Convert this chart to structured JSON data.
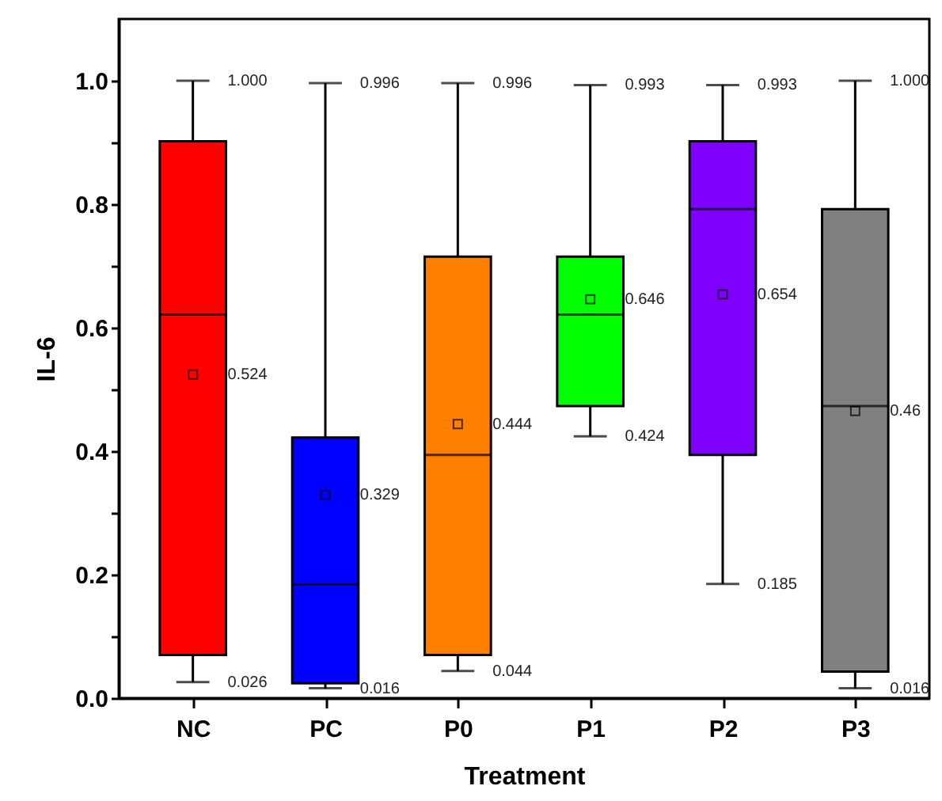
{
  "chart_data": {
    "type": "box",
    "xlabel": "Treatment",
    "ylabel": "IL-6",
    "categories": [
      "NC",
      "PC",
      "P0",
      "P1",
      "P2",
      "P3"
    ],
    "colors": [
      "#ff0000",
      "#0000ff",
      "#ff8000",
      "#00ff00",
      "#8000ff",
      "#808080"
    ],
    "boxes": [
      {
        "low": 0.026,
        "q1": 0.07,
        "median": 0.621,
        "q3": 0.902,
        "high": 1.0,
        "mean": 0.524
      },
      {
        "low": 0.016,
        "q1": 0.024,
        "median": 0.184,
        "q3": 0.422,
        "high": 0.996,
        "mean": 0.329
      },
      {
        "low": 0.044,
        "q1": 0.07,
        "median": 0.394,
        "q3": 0.715,
        "high": 0.996,
        "mean": 0.444
      },
      {
        "low": 0.424,
        "q1": 0.473,
        "median": 0.621,
        "q3": 0.715,
        "high": 0.993,
        "mean": 0.646
      },
      {
        "low": 0.185,
        "q1": 0.394,
        "median": 0.792,
        "q3": 0.902,
        "high": 0.993,
        "mean": 0.654
      },
      {
        "low": 0.016,
        "q1": 0.043,
        "median": 0.473,
        "q3": 0.792,
        "high": 1.0,
        "mean": 0.465
      }
    ],
    "ylim": [
      0,
      1.1
    ],
    "yticks": [
      {
        "value": 0,
        "label": "0.0"
      },
      {
        "value": 0.1,
        "label": null
      },
      0.2,
      {
        "value": 0.3,
        "label": null
      },
      0.4,
      {
        "value": 0.5,
        "label": null
      },
      0.6,
      {
        "value": 0.7,
        "label": null
      },
      0.8,
      {
        "value": 0.9,
        "label": null
      },
      {
        "value": 1,
        "label": "1.0"
      }
    ],
    "marker": "square",
    "grid": false,
    "annotations": [
      {
        "text": "1.000",
        "x": "NC",
        "y": 1.0
      },
      {
        "text": "0.026",
        "x": "NC",
        "y": 0.026
      },
      {
        "text": "0.996",
        "x": "PC",
        "y": 0.996
      },
      {
        "text": "0.016",
        "x": "PC",
        "y": 0.016
      },
      {
        "text": "0.996",
        "x": "P0",
        "y": 0.996
      },
      {
        "text": "0.044",
        "x": "P0",
        "y": 0.044
      },
      {
        "text": "0.993",
        "x": "P1",
        "y": 0.993
      },
      {
        "text": "0.424",
        "x": "P1",
        "y": 0.424
      },
      {
        "text": "0.993",
        "x": "P2",
        "y": 0.993
      },
      {
        "text": "0.185",
        "x": "P2",
        "y": 0.185
      },
      {
        "text": "1.000",
        "x": "P3",
        "y": 1.0
      },
      {
        "text": "0.016",
        "x": "P3",
        "y": 0.016
      },
      "0.524",
      "0.329",
      "0.444",
      "0.646",
      "0.654",
      "0.46"
    ]
  }
}
